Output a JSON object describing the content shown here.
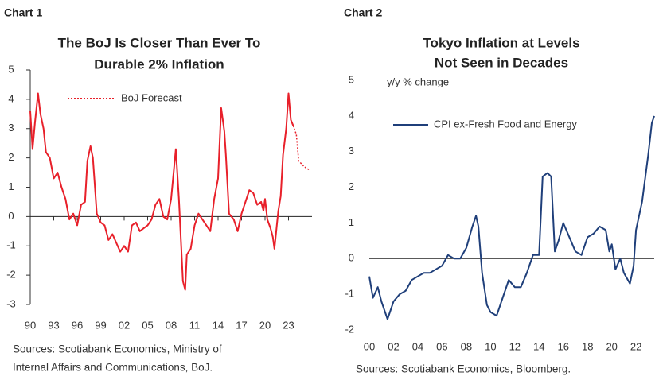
{
  "chart_data": [
    {
      "type": "line",
      "label": "Chart 1",
      "title": [
        "The BoJ Is Closer Than Ever To",
        "Durable 2% Inflation"
      ],
      "sources": [
        "Sources: Scotiabank Economics, Ministry of",
        "Internal Affairs and Communications, BoJ."
      ],
      "xlim": [
        1990,
        2026
      ],
      "ylim": [
        -3,
        5
      ],
      "xticks": [
        {
          "value": 1990,
          "label": "90"
        },
        {
          "value": 1993,
          "label": "93"
        },
        {
          "value": 1996,
          "label": "96"
        },
        {
          "value": 1999,
          "label": "99"
        },
        {
          "value": 2002,
          "label": "02"
        },
        {
          "value": 2005,
          "label": "05"
        },
        {
          "value": 2008,
          "label": "08"
        },
        {
          "value": 2011,
          "label": "11"
        },
        {
          "value": 2014,
          "label": "14"
        },
        {
          "value": 2017,
          "label": "17"
        },
        {
          "value": 2020,
          "label": "20"
        },
        {
          "value": 2023,
          "label": "23"
        }
      ],
      "yticks": [
        -3,
        -2,
        -1,
        0,
        1,
        2,
        3,
        4,
        5
      ],
      "y_axis_line": true,
      "zero_line": true,
      "legend": "upper left",
      "series": [
        {
          "color": "#e8202a",
          "style": "solid",
          "x": [
            1990,
            1990.3,
            1990.6,
            1991,
            1991.3,
            1991.7,
            1992,
            1992.5,
            1993,
            1993.5,
            1994,
            1994.5,
            1995,
            1995.5,
            1996,
            1996.5,
            1997,
            1997.3,
            1997.7,
            1998,
            1998.5,
            1999,
            1999.5,
            2000,
            2000.5,
            2001,
            2001.5,
            2002,
            2002.5,
            2003,
            2003.5,
            2004,
            2004.5,
            2005,
            2005.5,
            2006,
            2006.5,
            2007,
            2007.5,
            2008,
            2008.6,
            2009,
            2009.5,
            2009.8,
            2010,
            2010.5,
            2011,
            2011.5,
            2012,
            2012.5,
            2013,
            2013.5,
            2014,
            2014.4,
            2014.8,
            2015,
            2015.4,
            2016,
            2016.5,
            2017,
            2017.5,
            2018,
            2018.5,
            2019,
            2019.5,
            2019.8,
            2020,
            2020.3,
            2020.7,
            2021,
            2021.2,
            2021.5,
            2021.7,
            2022,
            2022.3,
            2022.7,
            2023,
            2023.3,
            2023.6
          ],
          "values": [
            3.6,
            2.3,
            3.2,
            4.2,
            3.5,
            3.0,
            2.2,
            2.0,
            1.3,
            1.5,
            1.0,
            0.6,
            -0.1,
            0.1,
            -0.3,
            0.4,
            0.5,
            1.9,
            2.4,
            2.0,
            0.1,
            -0.2,
            -0.3,
            -0.8,
            -0.6,
            -0.9,
            -1.2,
            -1.0,
            -1.2,
            -0.3,
            -0.2,
            -0.5,
            -0.4,
            -0.3,
            -0.1,
            0.4,
            0.6,
            0.0,
            -0.1,
            0.6,
            2.3,
            0.6,
            -2.2,
            -2.5,
            -1.3,
            -1.1,
            -0.3,
            0.1,
            -0.1,
            -0.3,
            -0.5,
            0.6,
            1.3,
            3.7,
            2.9,
            2.1,
            0.1,
            -0.1,
            -0.5,
            0.1,
            0.5,
            0.9,
            0.8,
            0.4,
            0.5,
            0.2,
            0.6,
            -0.1,
            -0.4,
            -0.7,
            -1.1,
            -0.3,
            0.2,
            0.7,
            2.1,
            3.0,
            4.2,
            3.3,
            3.1
          ]
        },
        {
          "name": "BoJ Forecast",
          "color": "#e8202a",
          "style": "dotted",
          "x": [
            2023.6,
            2024,
            2024.3,
            2025,
            2025.6
          ],
          "values": [
            3.1,
            2.8,
            1.9,
            1.7,
            1.6
          ]
        }
      ]
    },
    {
      "type": "line",
      "label": "Chart 2",
      "title": [
        "Tokyo Inflation at Levels",
        "Not Seen in Decades"
      ],
      "sources": [
        "Sources: Scotiabank Economics, Bloomberg."
      ],
      "ylabel": "y/y % change",
      "xlim": [
        2000,
        2023.5
      ],
      "ylim": [
        -2,
        5
      ],
      "xticks": [
        {
          "value": 2000,
          "label": "00"
        },
        {
          "value": 2002,
          "label": "02"
        },
        {
          "value": 2004,
          "label": "04"
        },
        {
          "value": 2006,
          "label": "06"
        },
        {
          "value": 2008,
          "label": "08"
        },
        {
          "value": 2010,
          "label": "10"
        },
        {
          "value": 2012,
          "label": "12"
        },
        {
          "value": 2014,
          "label": "14"
        },
        {
          "value": 2016,
          "label": "16"
        },
        {
          "value": 2018,
          "label": "18"
        },
        {
          "value": 2020,
          "label": "20"
        },
        {
          "value": 2022,
          "label": "22"
        }
      ],
      "yticks": [
        -2,
        -1,
        0,
        1,
        2,
        3,
        4,
        5
      ],
      "y_axis_line": false,
      "zero_line": true,
      "legend": "upper left",
      "series": [
        {
          "name": "CPI ex-Fresh Food and Energy",
          "color": "#1f3f7a",
          "style": "solid",
          "x": [
            2000,
            2000.3,
            2000.7,
            2001,
            2001.5,
            2002,
            2002.5,
            2003,
            2003.5,
            2004,
            2004.5,
            2005,
            2005.5,
            2006,
            2006.5,
            2007,
            2007.5,
            2008,
            2008.5,
            2008.8,
            2009,
            2009.3,
            2009.7,
            2010,
            2010.5,
            2011,
            2011.5,
            2012,
            2012.5,
            2013,
            2013.5,
            2014,
            2014.3,
            2014.7,
            2015,
            2015.3,
            2015.6,
            2016,
            2016.5,
            2017,
            2017.5,
            2018,
            2018.5,
            2019,
            2019.5,
            2019.8,
            2020,
            2020.3,
            2020.7,
            2021,
            2021.5,
            2021.8,
            2022,
            2022.5,
            2023,
            2023.3,
            2023.5
          ],
          "values": [
            -0.5,
            -1.1,
            -0.8,
            -1.2,
            -1.7,
            -1.2,
            -1.0,
            -0.9,
            -0.6,
            -0.5,
            -0.4,
            -0.4,
            -0.3,
            -0.2,
            0.1,
            0.0,
            0.0,
            0.3,
            0.9,
            1.2,
            0.9,
            -0.4,
            -1.3,
            -1.5,
            -1.6,
            -1.1,
            -0.6,
            -0.8,
            -0.8,
            -0.4,
            0.1,
            0.1,
            2.3,
            2.4,
            2.3,
            0.2,
            0.5,
            1.0,
            0.6,
            0.2,
            0.1,
            0.6,
            0.7,
            0.9,
            0.8,
            0.2,
            0.4,
            -0.3,
            0.0,
            -0.4,
            -0.7,
            -0.2,
            0.8,
            1.6,
            2.9,
            3.8,
            4.0
          ]
        }
      ]
    }
  ]
}
